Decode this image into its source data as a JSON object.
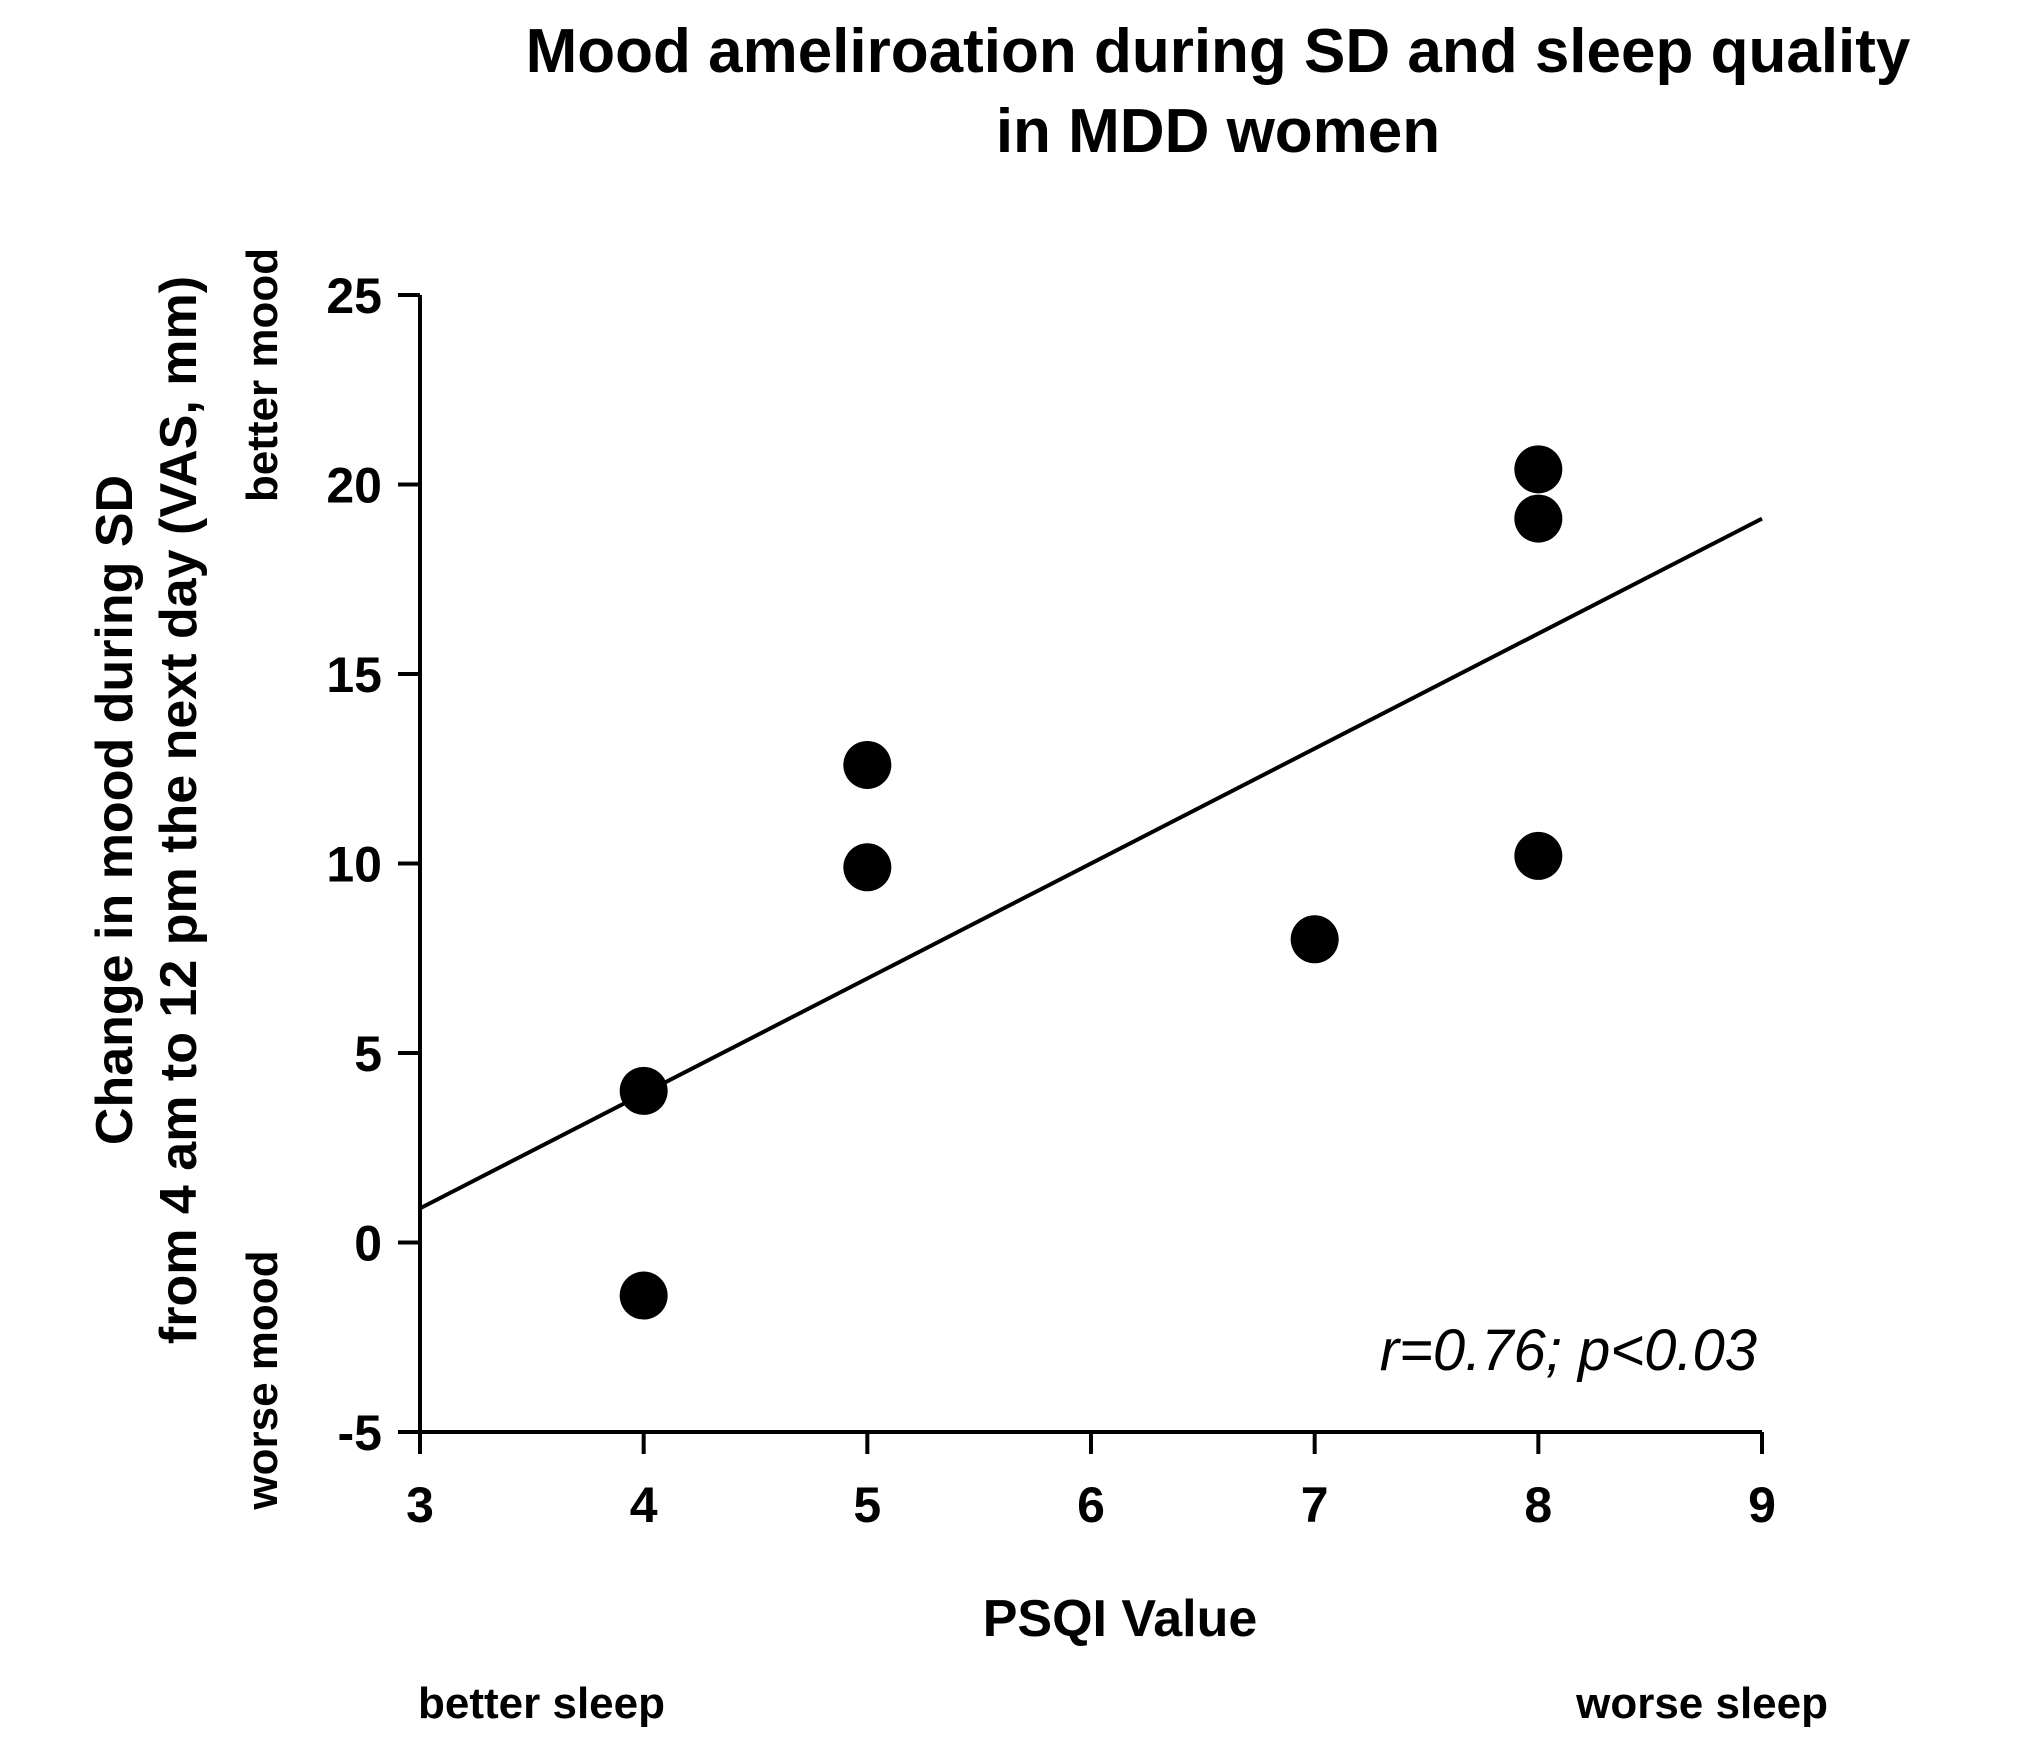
{
  "chart_data": {
    "type": "scatter",
    "title_lines": [
      "Mood ameliroation during SD and sleep quality",
      "in MDD women"
    ],
    "xlabel": "PSQI Value",
    "ylabel_lines": [
      "Change in mood during SD",
      "from 4 am to 12 pm the next day (VAS, mm)"
    ],
    "xlim": [
      3,
      9
    ],
    "ylim": [
      -5,
      25
    ],
    "xticks": [
      3,
      4,
      5,
      6,
      7,
      8,
      9
    ],
    "yticks": [
      -5,
      0,
      5,
      10,
      15,
      20,
      25
    ],
    "grid": false,
    "series": [
      {
        "name": "MDD women",
        "x": [
          4,
          4,
          5,
          5,
          7,
          8,
          8,
          8
        ],
        "y": [
          4.0,
          -1.4,
          12.6,
          9.9,
          8.0,
          20.4,
          19.1,
          10.2
        ]
      }
    ],
    "regression_line": {
      "x": [
        3,
        9
      ],
      "y": [
        0.9,
        19.1
      ]
    },
    "annotations": {
      "stat_text": "r=0.76; p<0.03",
      "y_top": "better mood",
      "y_bottom": "worse mood",
      "x_left": "better sleep",
      "x_right": "worse sleep"
    }
  }
}
